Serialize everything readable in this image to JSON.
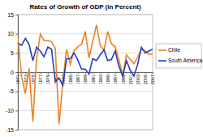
{
  "chart_data": {
    "type": "line",
    "title": "Rates of Growth of GDP (in Percent)",
    "x": [
      1971,
      1972,
      1973,
      1974,
      1975,
      1976,
      1977,
      1978,
      1979,
      1980,
      1981,
      1982,
      1983,
      1984,
      1985,
      1986,
      1987,
      1988,
      1989,
      1990,
      1991,
      1992,
      1993,
      1994,
      1995,
      1996,
      1997,
      1998,
      1999,
      2000,
      2001,
      2002,
      2003,
      2004,
      2005,
      2006,
      2007
    ],
    "series": [
      {
        "name": "Chile",
        "color": "#f28020",
        "values": [
          9.0,
          -1.2,
          -5.6,
          1.0,
          -12.9,
          3.5,
          9.9,
          8.2,
          8.3,
          7.9,
          6.2,
          -13.6,
          -2.8,
          5.9,
          2.0,
          5.6,
          6.6,
          7.3,
          10.6,
          3.7,
          8.0,
          12.3,
          7.0,
          5.7,
          10.6,
          7.4,
          6.6,
          3.2,
          -0.8,
          4.5,
          3.4,
          2.2,
          3.9,
          6.0,
          5.6,
          4.6,
          4.7
        ]
      },
      {
        "name": "South America",
        "color": "#2040c0",
        "values": [
          7.5,
          7.0,
          8.8,
          7.2,
          3.0,
          6.5,
          5.5,
          4.0,
          6.5,
          6.0,
          -2.5,
          -1.5,
          -3.5,
          3.5,
          3.5,
          5.0,
          3.2,
          0.8,
          0.8,
          -0.5,
          3.5,
          3.0,
          4.5,
          5.8,
          3.0,
          3.3,
          5.5,
          1.5,
          -1.0,
          3.0,
          0.5,
          -1.0,
          2.0,
          6.5,
          5.0,
          5.5,
          6.0
        ]
      }
    ],
    "xlim": [
      1971,
      2007
    ],
    "xticks": [
      1971,
      1973,
      1975,
      1977,
      1979,
      1981,
      1983,
      1985,
      1987,
      1989,
      1991,
      1993,
      1995,
      1997,
      1999,
      2001,
      2003,
      2005,
      2007
    ],
    "ylim": [
      -15,
      15
    ],
    "yticks": [
      -15,
      -10,
      -5,
      0,
      5,
      10,
      15
    ],
    "grid": true,
    "legend": "right"
  }
}
